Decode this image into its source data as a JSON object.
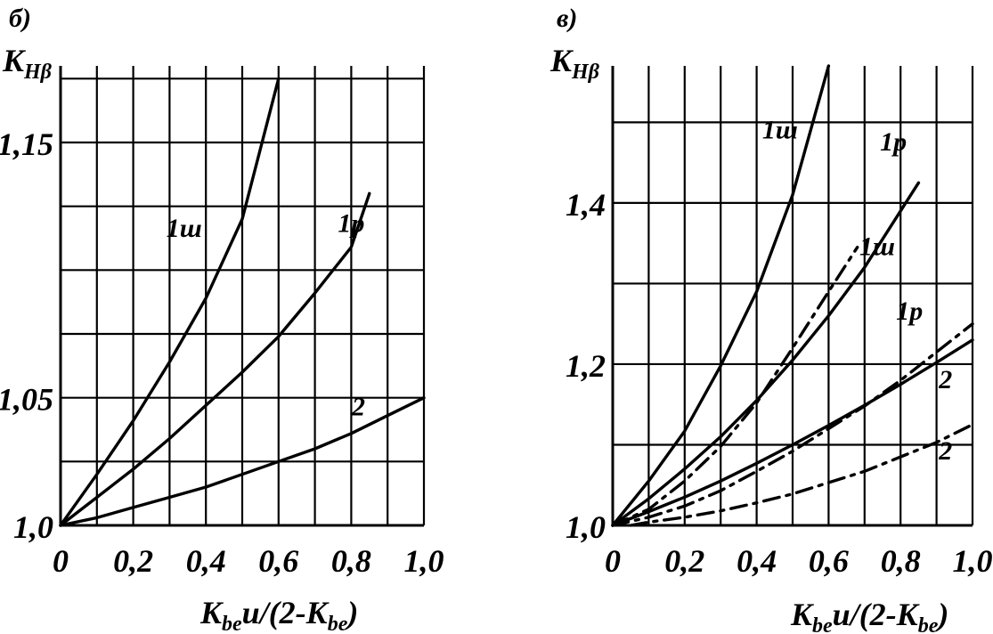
{
  "chart_data": [
    {
      "type": "line",
      "panel_label": "б)",
      "ylabel_main": "K",
      "ylabel_sub": "Hβ",
      "xlabel_main": "K",
      "xlabel_sub1": "be",
      "xlabel_mid": "u/(2-K",
      "xlabel_sub2": "be",
      "xlabel_end": ")",
      "xlim": [
        0,
        1.0
      ],
      "ylim": [
        1.0,
        1.18
      ],
      "x_ticks": [
        0,
        0.2,
        0.4,
        0.6,
        0.8,
        1.0
      ],
      "x_tick_labels": [
        "0",
        "0,2",
        "0,4",
        "0,6",
        "0,8",
        "1,0"
      ],
      "y_ticks": [
        1.0,
        1.05,
        1.15
      ],
      "y_tick_labels": [
        "1,0",
        "1,05",
        "1,15"
      ],
      "y_grid": [
        1.0,
        1.025,
        1.05,
        1.075,
        1.1,
        1.125,
        1.15,
        1.175
      ],
      "x_grid": [
        0,
        0.1,
        0.2,
        0.3,
        0.4,
        0.5,
        0.6,
        0.7,
        0.8,
        0.9,
        1.0
      ],
      "grid": true,
      "series": [
        {
          "name": "1ш",
          "style": "solid",
          "x": [
            0,
            0.1,
            0.2,
            0.3,
            0.4,
            0.5,
            0.6
          ],
          "y": [
            1.0,
            1.02,
            1.041,
            1.064,
            1.089,
            1.12,
            1.175
          ]
        },
        {
          "name": "1p",
          "style": "solid",
          "x": [
            0,
            0.1,
            0.2,
            0.3,
            0.4,
            0.5,
            0.6,
            0.7,
            0.8,
            0.85
          ],
          "y": [
            1.0,
            1.011,
            1.022,
            1.034,
            1.047,
            1.06,
            1.074,
            1.091,
            1.109,
            1.13
          ]
        },
        {
          "name": "2",
          "style": "solid",
          "x": [
            0,
            0.1,
            0.2,
            0.3,
            0.4,
            0.5,
            0.6,
            0.7,
            0.8,
            0.9,
            1.0
          ],
          "y": [
            1.0,
            1.003,
            1.007,
            1.011,
            1.015,
            1.02,
            1.025,
            1.03,
            1.036,
            1.043,
            1.05
          ]
        }
      ],
      "curve_labels": [
        {
          "text": "1ш",
          "x": 0.34,
          "y": 1.113
        },
        {
          "text": "1p",
          "x": 0.8,
          "y": 1.115
        },
        {
          "text": "2",
          "x": 0.82,
          "y": 1.043
        }
      ]
    },
    {
      "type": "line",
      "panel_label": "в)",
      "ylabel_main": "K",
      "ylabel_sub": "Hβ",
      "xlabel_main": "K",
      "xlabel_sub1": "be",
      "xlabel_mid": "u/(2-K",
      "xlabel_sub2": "be",
      "xlabel_end": ")",
      "xlim": [
        0,
        1.0
      ],
      "ylim": [
        1.0,
        1.57
      ],
      "x_ticks": [
        0,
        0.2,
        0.4,
        0.6,
        0.8,
        1.0
      ],
      "x_tick_labels": [
        "0",
        "0,2",
        "0,4",
        "0,6",
        "0,8",
        "1,0"
      ],
      "y_ticks": [
        1.0,
        1.2,
        1.4
      ],
      "y_tick_labels": [
        "1,0",
        "1,2",
        "1,4"
      ],
      "y_grid": [
        1.0,
        1.1,
        1.2,
        1.3,
        1.4,
        1.5
      ],
      "x_grid": [
        0,
        0.1,
        0.2,
        0.3,
        0.4,
        0.5,
        0.6,
        0.7,
        0.8,
        0.9,
        1.0
      ],
      "grid": true,
      "series": [
        {
          "name": "1ш",
          "style": "solid",
          "x": [
            0,
            0.1,
            0.2,
            0.3,
            0.4,
            0.5,
            0.6
          ],
          "y": [
            1.0,
            1.055,
            1.117,
            1.198,
            1.29,
            1.41,
            1.57
          ]
        },
        {
          "name": "1p",
          "style": "solid",
          "x": [
            0,
            0.1,
            0.2,
            0.3,
            0.4,
            0.5,
            0.6,
            0.7,
            0.8,
            0.85
          ],
          "y": [
            1.0,
            1.033,
            1.07,
            1.11,
            1.155,
            1.205,
            1.26,
            1.32,
            1.39,
            1.425
          ]
        },
        {
          "name": "1ш",
          "style": "dashdot",
          "x": [
            0,
            0.1,
            0.2,
            0.3,
            0.4,
            0.5,
            0.6,
            0.68
          ],
          "y": [
            1.0,
            1.02,
            1.055,
            1.098,
            1.152,
            1.22,
            1.29,
            1.345
          ]
        },
        {
          "name": "1p",
          "style": "dashdot",
          "x": [
            0,
            0.1,
            0.2,
            0.3,
            0.4,
            0.5,
            0.6,
            0.7,
            0.8,
            0.9,
            1.0
          ],
          "y": [
            1.0,
            1.01,
            1.024,
            1.043,
            1.067,
            1.092,
            1.12,
            1.148,
            1.18,
            1.215,
            1.25
          ]
        },
        {
          "name": "2",
          "style": "solid",
          "x": [
            0,
            0.1,
            0.2,
            0.3,
            0.4,
            0.5,
            0.6,
            0.7,
            0.8,
            0.9,
            1.0
          ],
          "y": [
            1.0,
            1.017,
            1.035,
            1.055,
            1.077,
            1.1,
            1.124,
            1.149,
            1.175,
            1.202,
            1.23
          ]
        },
        {
          "name": "2",
          "style": "dashdot",
          "x": [
            0.05,
            0.1,
            0.2,
            0.3,
            0.4,
            0.5,
            0.6,
            0.7,
            0.8,
            0.9,
            1.0
          ],
          "y": [
            1.0,
            1.004,
            1.01,
            1.018,
            1.028,
            1.039,
            1.053,
            1.067,
            1.085,
            1.103,
            1.125
          ]
        }
      ],
      "curve_labels": [
        {
          "text": "1ш",
          "x": 0.465,
          "y": 1.48
        },
        {
          "text": "1p",
          "x": 0.78,
          "y": 1.465
        },
        {
          "text": "1ш",
          "x": 0.735,
          "y": 1.335
        },
        {
          "text": "1p",
          "x": 0.825,
          "y": 1.255
        },
        {
          "text": "2",
          "x": 0.925,
          "y": 1.17
        },
        {
          "text": "2",
          "x": 0.925,
          "y": 1.082
        }
      ]
    }
  ]
}
